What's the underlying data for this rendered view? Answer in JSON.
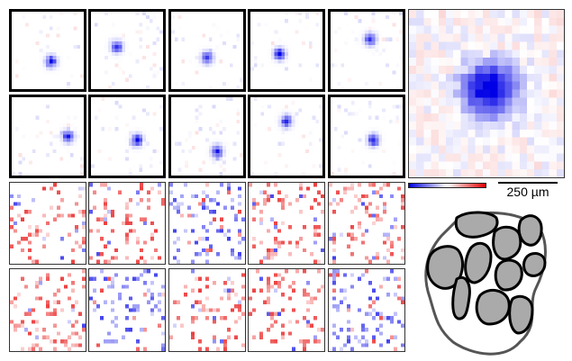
{
  "figure": {
    "scale_bar_label": "250 µm",
    "colormap": {
      "negative": "#0000e6",
      "zero": "#ffffff",
      "positive": "#e60000"
    }
  },
  "rows": [
    {
      "kind": "single-neuron-map",
      "border": "thick"
    },
    {
      "kind": "single-neuron-map",
      "border": "thick"
    },
    {
      "kind": "noise-map",
      "border": "thin"
    },
    {
      "kind": "noise-map",
      "border": "thin"
    }
  ],
  "average_map": {
    "kind": "population-average"
  },
  "schematic": {
    "kind": "cell-outlines",
    "fill": "#aaaaaa",
    "stroke": "#000000"
  }
}
